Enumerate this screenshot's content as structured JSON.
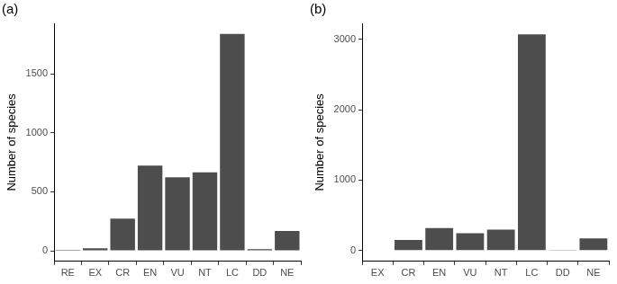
{
  "chart_data": [
    {
      "type": "bar",
      "title": "(a)",
      "y_label": "Number of species",
      "categories": [
        "RE",
        "EX",
        "CR",
        "EN",
        "VU",
        "NT",
        "LC",
        "DD",
        "NE"
      ],
      "values": [
        7,
        21,
        273,
        722,
        624,
        666,
        1840,
        14,
        168
      ],
      "color": "#4d4d4d",
      "ylim": [
        -90,
        1930
      ],
      "yticks": [
        0,
        500,
        1000,
        1500
      ],
      "grid": false
    },
    {
      "type": "bar",
      "title": "(b)",
      "y_label": "Number of species",
      "categories": [
        "EX",
        "CR",
        "EN",
        "VU",
        "NT",
        "LC",
        "DD",
        "NE"
      ],
      "values": [
        5,
        148,
        320,
        246,
        295,
        3075,
        3,
        172
      ],
      "color": "#4d4d4d",
      "ylim": [
        -155,
        3230
      ],
      "yticks": [
        0,
        1000,
        2000,
        3000
      ],
      "grid": false
    }
  ]
}
